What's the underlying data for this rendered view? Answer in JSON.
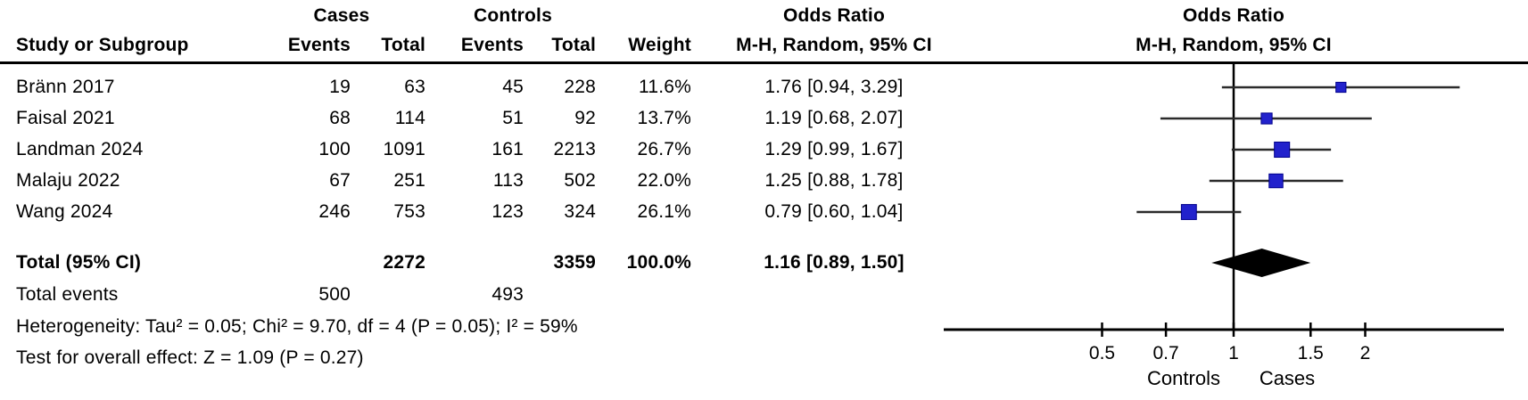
{
  "colors": {
    "square_blue": "#2222CC",
    "square_border": "#00008B",
    "ci_line": "#2b2b2b",
    "axis_black": "#000000",
    "diamond_black": "#000000"
  },
  "header": {
    "group_cases": "Cases",
    "group_controls": "Controls",
    "col_study": "Study or Subgroup",
    "col_events": "Events",
    "col_total": "Total",
    "col_weight": "Weight",
    "or_text_title": "Odds Ratio",
    "or_text_sub": "M-H, Random, 95% CI",
    "or_plot_title": "Odds Ratio",
    "or_plot_sub": "M-H, Random, 95% CI"
  },
  "studies": [
    {
      "name": "Bränn 2017",
      "cases_events": "19",
      "cases_total": "63",
      "controls_events": "45",
      "controls_total": "228",
      "weight": "11.6%",
      "ci_text": "1.76 [0.94, 3.29]"
    },
    {
      "name": "Faisal 2021",
      "cases_events": "68",
      "cases_total": "114",
      "controls_events": "51",
      "controls_total": "92",
      "weight": "13.7%",
      "ci_text": "1.19 [0.68, 2.07]"
    },
    {
      "name": "Landman 2024",
      "cases_events": "100",
      "cases_total": "1091",
      "controls_events": "161",
      "controls_total": "2213",
      "weight": "26.7%",
      "ci_text": "1.29 [0.99, 1.67]"
    },
    {
      "name": "Malaju 2022",
      "cases_events": "67",
      "cases_total": "251",
      "controls_events": "113",
      "controls_total": "502",
      "weight": "22.0%",
      "ci_text": "1.25 [0.88, 1.78]"
    },
    {
      "name": "Wang 2024",
      "cases_events": "246",
      "cases_total": "753",
      "controls_events": "123",
      "controls_total": "324",
      "weight": "26.1%",
      "ci_text": "0.79 [0.60, 1.04]"
    }
  ],
  "totals": {
    "label": "Total (95% CI)",
    "cases_total": "2272",
    "controls_total": "3359",
    "weight": "100.0%",
    "ci_text": "1.16 [0.89, 1.50]",
    "events_label": "Total events",
    "cases_events": "500",
    "controls_events": "493"
  },
  "footer": {
    "heterogeneity": "Heterogeneity: Tau² = 0.05; Chi² = 9.70, df = 4 (P = 0.05); I² = 59%",
    "overall_effect": "Test for overall effect: Z = 1.09 (P = 0.27)"
  },
  "chart_data": {
    "type": "forest",
    "x_scale": "log",
    "title": "Odds Ratio",
    "subtitle": "M-H, Random, 95% CI",
    "reference_line": 1,
    "x_tick_values": [
      0.5,
      0.7,
      1,
      1.5,
      2
    ],
    "x_tick_labels": [
      "0.5",
      "0.7",
      "1",
      "1.5",
      "2"
    ],
    "axis_direction_labels": {
      "left": "Controls",
      "right": "Cases"
    },
    "series": [
      {
        "name": "Bränn 2017",
        "or": 1.76,
        "ci_low": 0.94,
        "ci_high": 3.29,
        "weight_pct": 11.6
      },
      {
        "name": "Faisal 2021",
        "or": 1.19,
        "ci_low": 0.68,
        "ci_high": 2.07,
        "weight_pct": 13.7
      },
      {
        "name": "Landman 2024",
        "or": 1.29,
        "ci_low": 0.99,
        "ci_high": 1.67,
        "weight_pct": 26.7
      },
      {
        "name": "Malaju 2022",
        "or": 1.25,
        "ci_low": 0.88,
        "ci_high": 1.78,
        "weight_pct": 22.0
      },
      {
        "name": "Wang 2024",
        "or": 0.79,
        "ci_low": 0.6,
        "ci_high": 1.04,
        "weight_pct": 26.1
      }
    ],
    "pooled": {
      "label": "Total (95% CI)",
      "or": 1.16,
      "ci_low": 0.89,
      "ci_high": 1.5,
      "weight_pct": 100.0
    }
  }
}
